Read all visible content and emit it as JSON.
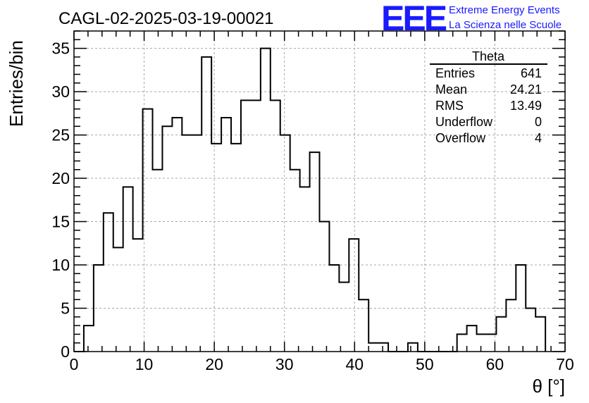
{
  "title": "CAGL-02-2025-03-19-00021",
  "logo": {
    "mark": "EEE",
    "line1": "Extreme Energy Events",
    "line2": "La Scienza nelle Scuole",
    "color": "#1a1aff"
  },
  "stats": {
    "title": "Theta",
    "rows": [
      {
        "label": "Entries",
        "value": "641"
      },
      {
        "label": "Mean",
        "value": "24.21"
      },
      {
        "label": "RMS",
        "value": "13.49"
      },
      {
        "label": "Underflow",
        "value": "0"
      },
      {
        "label": "Overflow",
        "value": "4"
      }
    ]
  },
  "chart_data": {
    "type": "histogram",
    "xlabel": "θ [°]",
    "ylabel": "Entries/bin",
    "xlim": [
      0,
      70
    ],
    "ylim": [
      0,
      37
    ],
    "x_ticks": [
      0,
      10,
      20,
      30,
      40,
      50,
      60,
      70
    ],
    "y_ticks": [
      0,
      5,
      10,
      15,
      20,
      25,
      30,
      35
    ],
    "grid": true,
    "bin_width": 1.4,
    "bin_start": 0,
    "values": [
      0,
      3,
      10,
      16,
      12,
      19,
      13,
      28,
      21,
      26,
      27,
      25,
      25,
      34,
      24,
      27,
      24,
      29,
      29,
      35,
      29,
      25,
      21,
      19,
      23,
      15,
      10,
      8,
      13,
      6,
      1,
      1,
      0,
      0,
      1,
      0,
      0,
      0,
      0,
      2,
      3,
      2,
      2,
      4,
      6,
      10,
      5,
      4
    ]
  }
}
